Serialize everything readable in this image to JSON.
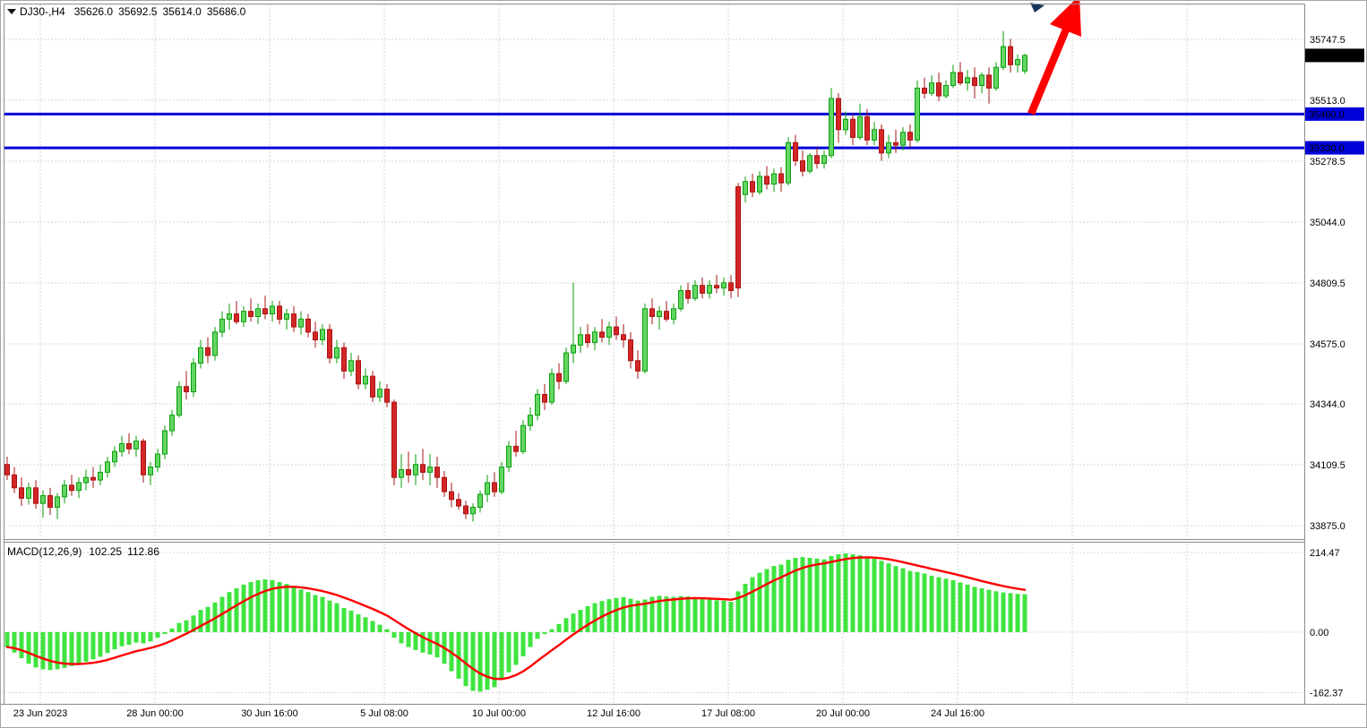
{
  "header": {
    "symbol_period": "DJ30-,H4",
    "open": "35626.0",
    "high": "35692.5",
    "low": "35614.0",
    "close": "35686.0"
  },
  "macd_header": {
    "label": "MACD(12,26,9)",
    "macd_value": "102.25",
    "signal_value": "112.86"
  },
  "price_axis": {
    "ticks": [
      "35747.5",
      "35513.0",
      "35278.5",
      "35044.0",
      "34809.5",
      "34575.0",
      "34344.0",
      "34109.5",
      "33875.0"
    ],
    "tags": [
      {
        "label": "35686.0",
        "value": 35686.0,
        "bg": "#000000"
      },
      {
        "label": "35460.0",
        "value": 35460.0,
        "bg": "#0000d8"
      },
      {
        "label": "35330.0",
        "value": 35330.0,
        "bg": "#0000d8"
      }
    ]
  },
  "macd_axis": {
    "ticks": [
      {
        "label": "214.47",
        "value": 214.47
      },
      {
        "label": "0.00",
        "value": 0
      },
      {
        "label": "-162.37",
        "value": -162.37
      }
    ]
  },
  "time_axis": {
    "labels": [
      "23 Jun 2023",
      "28 Jun 00:00",
      "30 Jun 16:00",
      "5 Jul 08:00",
      "10 Jul 00:00",
      "12 Jul 16:00",
      "17 Jul 08:00",
      "20 Jul 00:00",
      "24 Jul 16:00"
    ]
  },
  "colors": {
    "bull_fill": "#63d663",
    "bull_stroke": "#0a9e0a",
    "bear_fill": "#d42626",
    "bear_stroke": "#a81414",
    "histogram": "#3fe43f",
    "signal": "#ff0000",
    "grid": "#d6d6d6",
    "arrow": "#ff0000",
    "hline": "#0000d8",
    "tag_current_bg": "#000000"
  },
  "chart_data": {
    "type": "candlestick",
    "symbol": "DJ30-",
    "timeframe": "H4",
    "title": "DJ30-,H4",
    "current_candle": {
      "open": 35626.0,
      "high": 35692.5,
      "low": 35614.0,
      "close": 35686.0
    },
    "y_axis_ticks": [
      35747.5,
      35513.0,
      35278.5,
      35044.0,
      34809.5,
      34575.0,
      34344.0,
      34109.5,
      33875.0
    ],
    "y_axis_range": {
      "top": 35899.5,
      "bottom": 33829.5
    },
    "x_axis_labels": [
      "23 Jun 2023",
      "28 Jun 00:00",
      "30 Jun 16:00",
      "5 Jul 08:00",
      "10 Jul 00:00",
      "12 Jul 16:00",
      "17 Jul 08:00",
      "20 Jul 00:00",
      "24 Jul 16:00"
    ],
    "candles_per_x_gridline": 16,
    "grid": true,
    "horizontal_lines": [
      {
        "value": 35460.0,
        "color": "#0000d8",
        "role": "resistance-support"
      },
      {
        "value": 35330.0,
        "color": "#0000d8",
        "role": "support"
      }
    ],
    "annotations": [
      {
        "type": "arrow",
        "direction": "up-right",
        "color": "#ff0000"
      }
    ],
    "candles_ohlc": [
      [
        34110,
        34140,
        34050,
        34070
      ],
      [
        34070,
        34100,
        34000,
        34020
      ],
      [
        34020,
        34060,
        33950,
        33980
      ],
      [
        33980,
        34040,
        33955,
        34020
      ],
      [
        34020,
        34050,
        33940,
        33960
      ],
      [
        33960,
        34010,
        33905,
        33990
      ],
      [
        33990,
        34020,
        33915,
        33945
      ],
      [
        33945,
        34000,
        33900,
        33985
      ],
      [
        33985,
        34050,
        33960,
        34030
      ],
      [
        34030,
        34070,
        33990,
        34010
      ],
      [
        34010,
        34060,
        33980,
        34040
      ],
      [
        34040,
        34090,
        34010,
        34060
      ],
      [
        34060,
        34100,
        34020,
        34050
      ],
      [
        34050,
        34110,
        34030,
        34080
      ],
      [
        34080,
        34140,
        34060,
        34120
      ],
      [
        34120,
        34180,
        34100,
        34160
      ],
      [
        34160,
        34220,
        34140,
        34190
      ],
      [
        34190,
        34230,
        34150,
        34170
      ],
      [
        34170,
        34220,
        34140,
        34200
      ],
      [
        34200,
        34210,
        34040,
        34070
      ],
      [
        34070,
        34120,
        34030,
        34100
      ],
      [
        34100,
        34170,
        34080,
        34150
      ],
      [
        34150,
        34260,
        34130,
        34240
      ],
      [
        34240,
        34320,
        34220,
        34300
      ],
      [
        34300,
        34430,
        34290,
        34410
      ],
      [
        34410,
        34470,
        34360,
        34390
      ],
      [
        34390,
        34520,
        34370,
        34500
      ],
      [
        34500,
        34590,
        34480,
        34560
      ],
      [
        34560,
        34600,
        34500,
        34530
      ],
      [
        34530,
        34640,
        34510,
        34620
      ],
      [
        34620,
        34700,
        34600,
        34670
      ],
      [
        34670,
        34730,
        34630,
        34690
      ],
      [
        34690,
        34740,
        34650,
        34660
      ],
      [
        34660,
        34720,
        34640,
        34700
      ],
      [
        34700,
        34750,
        34660,
        34680
      ],
      [
        34680,
        34730,
        34650,
        34710
      ],
      [
        34710,
        34760,
        34670,
        34690
      ],
      [
        34690,
        34740,
        34660,
        34720
      ],
      [
        34720,
        34740,
        34650,
        34670
      ],
      [
        34670,
        34710,
        34630,
        34690
      ],
      [
        34690,
        34720,
        34620,
        34640
      ],
      [
        34640,
        34700,
        34610,
        34670
      ],
      [
        34670,
        34690,
        34600,
        34620
      ],
      [
        34620,
        34660,
        34560,
        34590
      ],
      [
        34590,
        34650,
        34570,
        34630
      ],
      [
        34630,
        34650,
        34500,
        34520
      ],
      [
        34520,
        34590,
        34500,
        34560
      ],
      [
        34560,
        34580,
        34440,
        34470
      ],
      [
        34470,
        34540,
        34450,
        34510
      ],
      [
        34510,
        34530,
        34400,
        34420
      ],
      [
        34420,
        34480,
        34400,
        34450
      ],
      [
        34450,
        34470,
        34350,
        34370
      ],
      [
        34370,
        34430,
        34350,
        34400
      ],
      [
        34400,
        34420,
        34330,
        34350
      ],
      [
        34350,
        34360,
        34030,
        34060
      ],
      [
        34060,
        34150,
        34020,
        34090
      ],
      [
        34090,
        34160,
        34040,
        34070
      ],
      [
        34070,
        34150,
        34030,
        34110
      ],
      [
        34110,
        34170,
        34050,
        34080
      ],
      [
        34080,
        34150,
        34030,
        34100
      ],
      [
        34100,
        34140,
        34020,
        34060
      ],
      [
        34060,
        34085,
        33985,
        34005
      ],
      [
        34005,
        34040,
        33945,
        33975
      ],
      [
        33975,
        34000,
        33935,
        33950
      ],
      [
        33950,
        33970,
        33900,
        33920
      ],
      [
        33920,
        33960,
        33890,
        33945
      ],
      [
        33945,
        34010,
        33925,
        33995
      ],
      [
        33995,
        34070,
        33965,
        34040
      ],
      [
        34040,
        34080,
        33985,
        34005
      ],
      [
        34005,
        34120,
        33995,
        34100
      ],
      [
        34100,
        34200,
        34080,
        34180
      ],
      [
        34180,
        34240,
        34140,
        34160
      ],
      [
        34160,
        34280,
        34150,
        34260
      ],
      [
        34260,
        34330,
        34240,
        34300
      ],
      [
        34300,
        34400,
        34280,
        34380
      ],
      [
        34380,
        34420,
        34320,
        34350
      ],
      [
        34350,
        34480,
        34340,
        34460
      ],
      [
        34460,
        34500,
        34400,
        34430
      ],
      [
        34430,
        34560,
        34420,
        34540
      ],
      [
        34540,
        34810,
        34500,
        34570
      ],
      [
        34570,
        34640,
        34540,
        34610
      ],
      [
        34610,
        34650,
        34560,
        34580
      ],
      [
        34580,
        34640,
        34550,
        34620
      ],
      [
        34620,
        34670,
        34580,
        34600
      ],
      [
        34600,
        34660,
        34570,
        34640
      ],
      [
        34640,
        34680,
        34590,
        34610
      ],
      [
        34610,
        34650,
        34560,
        34590
      ],
      [
        34590,
        34620,
        34480,
        34510
      ],
      [
        34510,
        34550,
        34440,
        34470
      ],
      [
        34470,
        34730,
        34460,
        34710
      ],
      [
        34710,
        34750,
        34650,
        34680
      ],
      [
        34680,
        34720,
        34630,
        34700
      ],
      [
        34700,
        34740,
        34660,
        34670
      ],
      [
        34670,
        34730,
        34650,
        34710
      ],
      [
        34710,
        34800,
        34700,
        34780
      ],
      [
        34780,
        34810,
        34730,
        34750
      ],
      [
        34750,
        34820,
        34740,
        34800
      ],
      [
        34800,
        34830,
        34750,
        34770
      ],
      [
        34770,
        34820,
        34750,
        34800
      ],
      [
        34800,
        34840,
        34770,
        34790
      ],
      [
        34790,
        34830,
        34760,
        34810
      ],
      [
        34810,
        34840,
        34750,
        34780
      ],
      [
        35180,
        35195,
        34755,
        34790
      ],
      [
        35150,
        35220,
        35120,
        35200
      ],
      [
        35200,
        35230,
        35140,
        35160
      ],
      [
        35160,
        35240,
        35150,
        35220
      ],
      [
        35220,
        35260,
        35170,
        35190
      ],
      [
        35190,
        35250,
        35160,
        35230
      ],
      [
        35230,
        35255,
        35160,
        35195
      ],
      [
        35195,
        35370,
        35185,
        35350
      ],
      [
        35350,
        35380,
        35260,
        35280
      ],
      [
        35280,
        35320,
        35220,
        35240
      ],
      [
        35240,
        35310,
        35230,
        35300
      ],
      [
        35300,
        35330,
        35250,
        35270
      ],
      [
        35270,
        35320,
        35250,
        35300
      ],
      [
        35300,
        35560,
        35290,
        35520
      ],
      [
        35520,
        35540,
        35350,
        35400
      ],
      [
        35400,
        35470,
        35380,
        35440
      ],
      [
        35440,
        35460,
        35340,
        35370
      ],
      [
        35370,
        35500,
        35360,
        35450
      ],
      [
        35450,
        35480,
        35340,
        35360
      ],
      [
        35360,
        35430,
        35340,
        35400
      ],
      [
        35400,
        35420,
        35280,
        35310
      ],
      [
        35310,
        35380,
        35290,
        35350
      ],
      [
        35350,
        35400,
        35310,
        35340
      ],
      [
        35340,
        35410,
        35320,
        35390
      ],
      [
        35390,
        35420,
        35330,
        35360
      ],
      [
        35360,
        35590,
        35350,
        35560
      ],
      [
        35560,
        35600,
        35520,
        35540
      ],
      [
        35540,
        35610,
        35530,
        35580
      ],
      [
        35580,
        35620,
        35510,
        35530
      ],
      [
        35530,
        35590,
        35520,
        35570
      ],
      [
        35570,
        35650,
        35560,
        35620
      ],
      [
        35620,
        35660,
        35570,
        35580
      ],
      [
        35580,
        35630,
        35550,
        35600
      ],
      [
        35600,
        35640,
        35520,
        35570
      ],
      [
        35570,
        35620,
        35540,
        35610
      ],
      [
        35610,
        35640,
        35500,
        35560
      ],
      [
        35560,
        35660,
        35550,
        35640
      ],
      [
        35640,
        35780,
        35630,
        35720
      ],
      [
        35720,
        35750,
        35620,
        35650
      ],
      [
        35650,
        35690,
        35620,
        35670
      ],
      [
        35626,
        35692.5,
        35614,
        35686
      ]
    ],
    "indicator": {
      "name": "MACD",
      "params": [
        12,
        26,
        9
      ],
      "macd_value": 102.25,
      "signal_value": 112.86,
      "signal_period": 9,
      "axis_range": {
        "top": 238.6,
        "bottom": -192.8
      },
      "histogram": [
        -40,
        -55,
        -70,
        -85,
        -95,
        -100,
        -102,
        -100,
        -96,
        -91,
        -86,
        -80,
        -73,
        -66,
        -56,
        -46,
        -38,
        -34,
        -28,
        -30,
        -25,
        -15,
        -5,
        10,
        25,
        32,
        45,
        60,
        68,
        80,
        95,
        108,
        118,
        128,
        135,
        140,
        142,
        140,
        135,
        130,
        122,
        115,
        108,
        100,
        95,
        85,
        78,
        65,
        58,
        48,
        40,
        30,
        20,
        8,
        -15,
        -30,
        -40,
        -48,
        -55,
        -60,
        -68,
        -85,
        -105,
        -125,
        -145,
        -158,
        -160,
        -155,
        -148,
        -128,
        -108,
        -88,
        -65,
        -40,
        -18,
        -5,
        8,
        22,
        38,
        50,
        60,
        70,
        78,
        84,
        89,
        92,
        94,
        90,
        85,
        88,
        95,
        98,
        96,
        95,
        97,
        96,
        94,
        90,
        88,
        86,
        85,
        82,
        110,
        130,
        148,
        160,
        170,
        178,
        182,
        195,
        200,
        202,
        200,
        198,
        196,
        205,
        210,
        212,
        210,
        207,
        203,
        198,
        192,
        185,
        178,
        172,
        165,
        162,
        158,
        152,
        148,
        144,
        140,
        134,
        128,
        122,
        118,
        114,
        110,
        107,
        105,
        103,
        102.25
      ]
    }
  }
}
